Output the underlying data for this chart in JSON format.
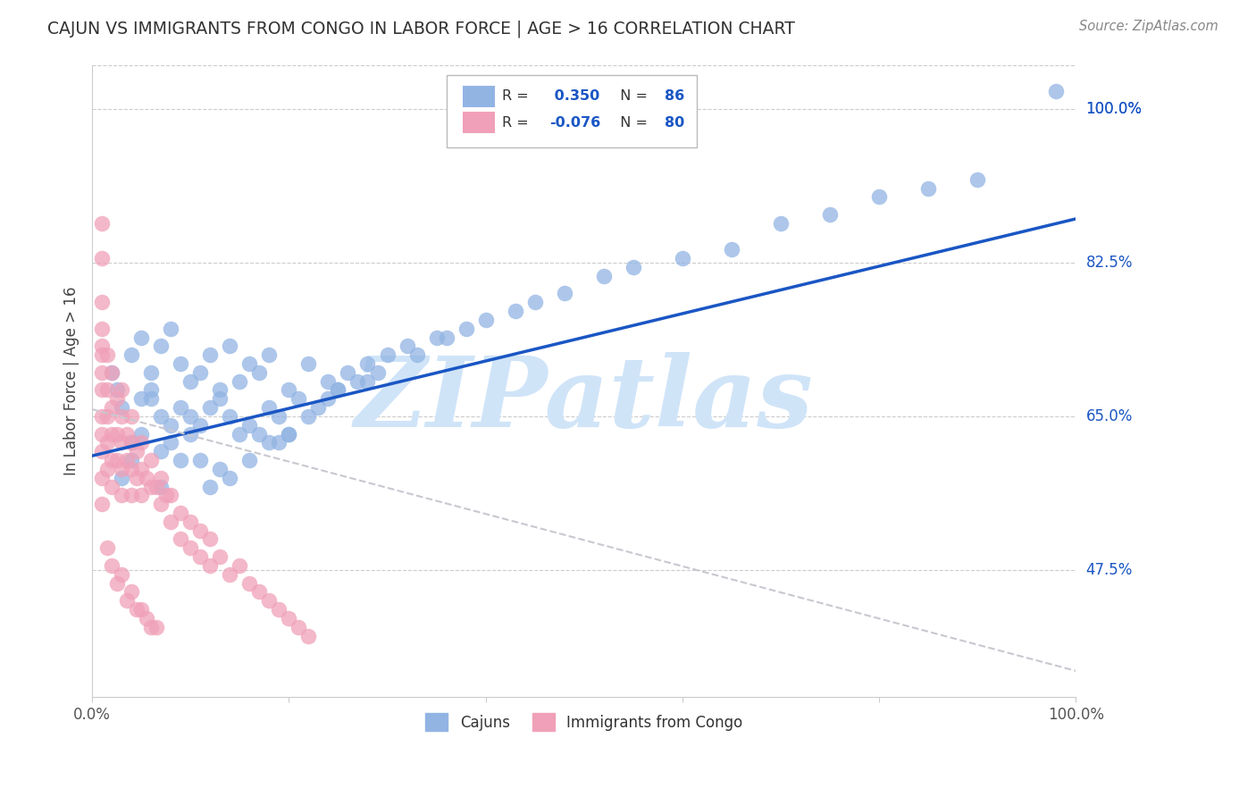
{
  "title": "CAJUN VS IMMIGRANTS FROM CONGO IN LABOR FORCE | AGE > 16 CORRELATION CHART",
  "source": "Source: ZipAtlas.com",
  "ylabel": "In Labor Force | Age > 16",
  "xlim": [
    0.0,
    1.0
  ],
  "ylim": [
    0.33,
    1.05
  ],
  "yticks": [
    0.475,
    0.65,
    0.825,
    1.0
  ],
  "ytick_labels": [
    "47.5%",
    "65.0%",
    "82.5%",
    "100.0%"
  ],
  "cajun_R": 0.35,
  "cajun_N": 86,
  "congo_R": -0.076,
  "congo_N": 80,
  "cajun_color": "#92b4e3",
  "cajun_line_color": "#1a56c4",
  "congo_color": "#f0a0b8",
  "congo_line_color": "#c8c8d0",
  "watermark": "ZIPatlas",
  "watermark_color": "#d0e4f8",
  "cajun_scatter_x": [
    0.98,
    0.02,
    0.04,
    0.025,
    0.03,
    0.05,
    0.04,
    0.06,
    0.03,
    0.07,
    0.05,
    0.08,
    0.04,
    0.06,
    0.09,
    0.07,
    0.05,
    0.1,
    0.08,
    0.06,
    0.12,
    0.09,
    0.07,
    0.11,
    0.14,
    0.1,
    0.08,
    0.13,
    0.16,
    0.11,
    0.09,
    0.15,
    0.12,
    0.07,
    0.18,
    0.13,
    0.1,
    0.17,
    0.14,
    0.2,
    0.15,
    0.22,
    0.18,
    0.11,
    0.16,
    0.24,
    0.19,
    0.13,
    0.21,
    0.26,
    0.17,
    0.12,
    0.23,
    0.19,
    0.28,
    0.14,
    0.25,
    0.2,
    0.3,
    0.16,
    0.22,
    0.18,
    0.27,
    0.32,
    0.24,
    0.35,
    0.2,
    0.29,
    0.38,
    0.25,
    0.4,
    0.43,
    0.33,
    0.45,
    0.28,
    0.48,
    0.36,
    0.52,
    0.6,
    0.55,
    0.65,
    0.7,
    0.75,
    0.8,
    0.85,
    0.9
  ],
  "cajun_scatter_y": [
    1.02,
    0.7,
    0.72,
    0.68,
    0.66,
    0.74,
    0.62,
    0.7,
    0.58,
    0.73,
    0.67,
    0.75,
    0.6,
    0.68,
    0.71,
    0.65,
    0.63,
    0.69,
    0.64,
    0.67,
    0.72,
    0.66,
    0.61,
    0.7,
    0.73,
    0.65,
    0.62,
    0.68,
    0.71,
    0.64,
    0.6,
    0.69,
    0.66,
    0.57,
    0.72,
    0.67,
    0.63,
    0.7,
    0.65,
    0.68,
    0.63,
    0.71,
    0.66,
    0.6,
    0.64,
    0.69,
    0.65,
    0.59,
    0.67,
    0.7,
    0.63,
    0.57,
    0.66,
    0.62,
    0.71,
    0.58,
    0.68,
    0.63,
    0.72,
    0.6,
    0.65,
    0.62,
    0.69,
    0.73,
    0.67,
    0.74,
    0.63,
    0.7,
    0.75,
    0.68,
    0.76,
    0.77,
    0.72,
    0.78,
    0.69,
    0.79,
    0.74,
    0.81,
    0.83,
    0.82,
    0.84,
    0.87,
    0.88,
    0.9,
    0.91,
    0.92
  ],
  "congo_scatter_x": [
    0.01,
    0.01,
    0.01,
    0.01,
    0.01,
    0.01,
    0.01,
    0.01,
    0.01,
    0.01,
    0.01,
    0.015,
    0.015,
    0.015,
    0.015,
    0.015,
    0.02,
    0.02,
    0.02,
    0.02,
    0.02,
    0.025,
    0.025,
    0.025,
    0.03,
    0.03,
    0.03,
    0.03,
    0.03,
    0.035,
    0.035,
    0.04,
    0.04,
    0.04,
    0.04,
    0.045,
    0.045,
    0.05,
    0.05,
    0.05,
    0.055,
    0.06,
    0.06,
    0.065,
    0.07,
    0.07,
    0.075,
    0.08,
    0.08,
    0.09,
    0.09,
    0.1,
    0.1,
    0.11,
    0.11,
    0.12,
    0.12,
    0.13,
    0.14,
    0.15,
    0.16,
    0.17,
    0.18,
    0.19,
    0.2,
    0.21,
    0.22,
    0.01,
    0.01,
    0.015,
    0.02,
    0.025,
    0.03,
    0.035,
    0.04,
    0.045,
    0.05,
    0.055,
    0.06,
    0.065
  ],
  "congo_scatter_y": [
    0.83,
    0.78,
    0.75,
    0.72,
    0.7,
    0.68,
    0.65,
    0.63,
    0.61,
    0.58,
    0.55,
    0.72,
    0.68,
    0.65,
    0.62,
    0.59,
    0.7,
    0.66,
    0.63,
    0.6,
    0.57,
    0.67,
    0.63,
    0.6,
    0.68,
    0.65,
    0.62,
    0.59,
    0.56,
    0.63,
    0.6,
    0.65,
    0.62,
    0.59,
    0.56,
    0.61,
    0.58,
    0.62,
    0.59,
    0.56,
    0.58,
    0.6,
    0.57,
    0.57,
    0.58,
    0.55,
    0.56,
    0.56,
    0.53,
    0.54,
    0.51,
    0.53,
    0.5,
    0.52,
    0.49,
    0.51,
    0.48,
    0.49,
    0.47,
    0.48,
    0.46,
    0.45,
    0.44,
    0.43,
    0.42,
    0.41,
    0.4,
    0.87,
    0.73,
    0.5,
    0.48,
    0.46,
    0.47,
    0.44,
    0.45,
    0.43,
    0.43,
    0.42,
    0.41,
    0.41
  ],
  "cajun_line_x0": 0.0,
  "cajun_line_y0": 0.605,
  "cajun_line_x1": 1.0,
  "cajun_line_y1": 0.875,
  "congo_line_x0": 0.0,
  "congo_line_y0": 0.658,
  "congo_line_x1": 1.0,
  "congo_line_y1": 0.36
}
